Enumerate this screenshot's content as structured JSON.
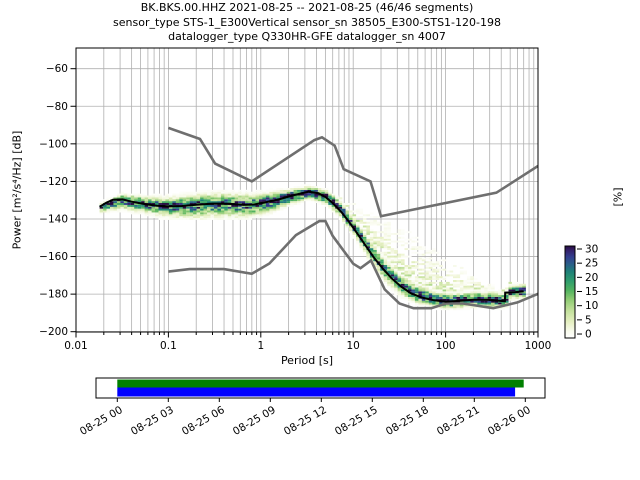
{
  "header": {
    "line1": "BK.BKS.00.HHZ   2021-08-25 -- 2021-08-25  (46/46 segments)",
    "line2": "sensor_type STS-1_E300Vertical sensor_sn 38505_E300-STS1-120-198",
    "line3": "datalogger_type Q330HR-GFE datalogger_sn 4007"
  },
  "chart_data": {
    "type": "heatmap",
    "title": "BK.BKS.00.HHZ   2021-08-25 -- 2021-08-25  (46/46 segments)",
    "x_axis": {
      "scale": "log",
      "min": 0.01,
      "max": 1000,
      "label": "Period [s]",
      "tick_labels": [
        "0.01",
        "0.1",
        "1",
        "10",
        "100",
        "1000"
      ],
      "tick_values": [
        0.01,
        0.1,
        1,
        10,
        100,
        1000
      ]
    },
    "y_axis": {
      "min": -200,
      "max": -49,
      "label": "Power [m²/s⁴/Hz] [dB]",
      "tick_values": [
        -60,
        -80,
        -100,
        -120,
        -140,
        -160,
        -180,
        -200
      ]
    },
    "colorbar": {
      "label": "[%]",
      "tick_values": [
        30,
        25,
        20,
        15,
        10,
        5,
        0
      ],
      "stops": [
        [
          0.0,
          "#ffffff"
        ],
        [
          0.07,
          "#f9fbee"
        ],
        [
          0.17,
          "#e7f0c3"
        ],
        [
          0.3,
          "#c2e09b"
        ],
        [
          0.42,
          "#8ecb73"
        ],
        [
          0.52,
          "#51b25f"
        ],
        [
          0.62,
          "#2f9d6d"
        ],
        [
          0.72,
          "#1f8178"
        ],
        [
          0.8,
          "#2a5f88"
        ],
        [
          0.88,
          "#333f8f"
        ],
        [
          0.95,
          "#34216b"
        ],
        [
          1.0,
          "#270b3f"
        ]
      ]
    },
    "grid_color": "#b0b0b0",
    "mode_line": {
      "color": "#000000",
      "points": [
        [
          0.018,
          -133.5
        ],
        [
          0.021,
          -131.5
        ],
        [
          0.025,
          -129.8
        ],
        [
          0.032,
          -129.6
        ],
        [
          0.04,
          -130.8
        ],
        [
          0.055,
          -132.0
        ],
        [
          0.075,
          -133.0
        ],
        [
          0.1,
          -133.3
        ],
        [
          0.14,
          -133.1
        ],
        [
          0.2,
          -132.4
        ],
        [
          0.3,
          -131.8
        ],
        [
          0.45,
          -131.9
        ],
        [
          0.65,
          -132.5
        ],
        [
          0.85,
          -132.3
        ],
        [
          1.1,
          -131.2
        ],
        [
          1.6,
          -129.4
        ],
        [
          2.2,
          -127.5
        ],
        [
          3.3,
          -125.5
        ],
        [
          4.2,
          -126.3
        ],
        [
          5.0,
          -128.3
        ],
        [
          6.0,
          -131.5
        ],
        [
          7.5,
          -136.5
        ],
        [
          9.0,
          -141.5
        ],
        [
          11.0,
          -147.5
        ],
        [
          14.0,
          -155.0
        ],
        [
          17.0,
          -161.0
        ],
        [
          21.0,
          -166.5
        ],
        [
          26.0,
          -171.5
        ],
        [
          33.0,
          -176.0
        ],
        [
          42.0,
          -179.5
        ],
        [
          55.0,
          -181.8
        ],
        [
          75.0,
          -183.3
        ],
        [
          100.0,
          -184.0
        ],
        [
          140.0,
          -183.6
        ],
        [
          200.0,
          -183.0
        ],
        [
          280.0,
          -183.0
        ],
        [
          380.0,
          -183.5
        ],
        [
          438.0,
          -183.8
        ],
        [
          442.0,
          -179.2
        ],
        [
          560.0,
          -179.0
        ],
        [
          700.0,
          -178.5
        ]
      ]
    },
    "noise_models": {
      "color": "#6f6f6f",
      "nhnm": [
        [
          0.1,
          -91.5
        ],
        [
          0.22,
          -97.4
        ],
        [
          0.32,
          -110.5
        ],
        [
          0.8,
          -120.0
        ],
        [
          3.8,
          -98.0
        ],
        [
          4.6,
          -96.5
        ],
        [
          6.3,
          -101.0
        ],
        [
          7.9,
          -113.5
        ],
        [
          15.4,
          -120.0
        ],
        [
          20.0,
          -138.5
        ],
        [
          354.8,
          -126.0
        ],
        [
          1000.0,
          -111.8
        ]
      ],
      "nlnm": [
        [
          0.1,
          -168.0
        ],
        [
          0.17,
          -166.7
        ],
        [
          0.4,
          -166.7
        ],
        [
          0.8,
          -169.2
        ],
        [
          1.24,
          -163.7
        ],
        [
          2.4,
          -148.6
        ],
        [
          4.3,
          -141.1
        ],
        [
          5.0,
          -141.1
        ],
        [
          6.0,
          -149.0
        ],
        [
          10.0,
          -163.8
        ],
        [
          12.0,
          -166.2
        ],
        [
          15.6,
          -162.1
        ],
        [
          21.9,
          -177.5
        ],
        [
          31.6,
          -185.0
        ],
        [
          45.0,
          -187.5
        ],
        [
          70.0,
          -187.5
        ],
        [
          101.0,
          -185.0
        ],
        [
          154.0,
          -185.0
        ],
        [
          328.0,
          -187.5
        ],
        [
          600.0,
          -184.4
        ],
        [
          1000.0,
          -179.8
        ]
      ]
    },
    "histogram_band": [
      {
        "p": 0.018,
        "c": -133.5,
        "lo": 2.0,
        "hi": 1.5,
        "fl": 1.0,
        "fh": 1.0,
        "pm": 24
      },
      {
        "p": 0.03,
        "c": -129.6,
        "lo": 3.5,
        "hi": 2.0,
        "fl": 2.0,
        "fh": 1.5,
        "pm": 26
      },
      {
        "p": 0.06,
        "c": -132.2,
        "lo": 3.5,
        "hi": 2.8,
        "fl": 2.0,
        "fh": 2.0,
        "pm": 25
      },
      {
        "p": 0.1,
        "c": -133.3,
        "lo": 4.0,
        "hi": 3.5,
        "fl": 2.5,
        "fh": 2.5,
        "pm": 23
      },
      {
        "p": 0.2,
        "c": -132.4,
        "lo": 5.0,
        "hi": 4.0,
        "fl": 3.0,
        "fh": 3.0,
        "pm": 22
      },
      {
        "p": 0.4,
        "c": -131.9,
        "lo": 5.0,
        "hi": 4.2,
        "fl": 3.0,
        "fh": 3.0,
        "pm": 22
      },
      {
        "p": 0.7,
        "c": -132.5,
        "lo": 4.5,
        "hi": 4.0,
        "fl": 3.0,
        "fh": 3.0,
        "pm": 23
      },
      {
        "p": 1.2,
        "c": -130.9,
        "lo": 4.0,
        "hi": 3.5,
        "fl": 2.5,
        "fh": 2.5,
        "pm": 25
      },
      {
        "p": 2.0,
        "c": -127.9,
        "lo": 3.0,
        "hi": 2.5,
        "fl": 2.0,
        "fh": 2.0,
        "pm": 27
      },
      {
        "p": 3.3,
        "c": -125.5,
        "lo": 2.5,
        "hi": 2.0,
        "fl": 1.5,
        "fh": 1.5,
        "pm": 30
      },
      {
        "p": 5.0,
        "c": -128.3,
        "lo": 2.8,
        "hi": 2.3,
        "fl": 1.5,
        "fh": 2.5,
        "pm": 28
      },
      {
        "p": 7.0,
        "c": -134.5,
        "lo": 3.0,
        "hi": 2.8,
        "fl": 2.0,
        "fh": 5.0,
        "pm": 26
      },
      {
        "p": 10.0,
        "c": -144.5,
        "lo": 3.5,
        "hi": 3.0,
        "fl": 2.5,
        "fh": 12.0,
        "pm": 22
      },
      {
        "p": 14.0,
        "c": -155.0,
        "lo": 4.0,
        "hi": 3.5,
        "fl": 3.0,
        "fh": 19.0,
        "pm": 20
      },
      {
        "p": 20.0,
        "c": -165.5,
        "lo": 4.5,
        "hi": 4.0,
        "fl": 6.0,
        "fh": 25.0,
        "pm": 19
      },
      {
        "p": 30.0,
        "c": -174.5,
        "lo": 4.0,
        "hi": 4.0,
        "fl": 7.0,
        "fh": 30.0,
        "pm": 20
      },
      {
        "p": 45.0,
        "c": -180.2,
        "lo": 3.0,
        "hi": 4.0,
        "fl": 5.0,
        "fh": 32.0,
        "pm": 23
      },
      {
        "p": 70.0,
        "c": -183.0,
        "lo": 2.5,
        "hi": 3.5,
        "fl": 3.5,
        "fh": 27.0,
        "pm": 26
      },
      {
        "p": 100.0,
        "c": -184.0,
        "lo": 2.5,
        "hi": 3.0,
        "fl": 2.5,
        "fh": 22.0,
        "pm": 28
      },
      {
        "p": 150.0,
        "c": -183.5,
        "lo": 2.5,
        "hi": 3.0,
        "fl": 2.5,
        "fh": 17.0,
        "pm": 28
      },
      {
        "p": 220.0,
        "c": -183.0,
        "lo": 2.5,
        "hi": 3.0,
        "fl": 2.5,
        "fh": 11.0,
        "pm": 28
      },
      {
        "p": 300.0,
        "c": -183.2,
        "lo": 2.5,
        "hi": 3.0,
        "fl": 2.5,
        "fh": 8.0,
        "pm": 27
      },
      {
        "p": 438.0,
        "c": -183.8,
        "lo": 2.5,
        "hi": 3.0,
        "fl": 2.0,
        "fh": 6.0,
        "pm": 27
      },
      {
        "p": 445.0,
        "c": -179.2,
        "lo": 2.5,
        "hi": 2.5,
        "fl": 2.0,
        "fh": 5.0,
        "pm": 27
      },
      {
        "p": 700.0,
        "c": -178.5,
        "lo": 2.5,
        "hi": 2.5,
        "fl": 2.0,
        "fh": 4.0,
        "pm": 27
      }
    ],
    "period_range": [
      0.018,
      700
    ],
    "db_bin_width": 1
  },
  "timeline": {
    "tick_labels": [
      "08-25 00",
      "08-25 03",
      "08-25 06",
      "08-25 09",
      "08-25 12",
      "08-25 15",
      "08-25 18",
      "08-25 21",
      "08-26 00"
    ],
    "bars": [
      {
        "name": "data-coverage",
        "color": "#008000",
        "start_frac": 0.0,
        "end_frac": 0.996
      },
      {
        "name": "processed-coverage",
        "color": "#0000ff",
        "start_frac": 0.0,
        "end_frac": 0.975
      }
    ]
  }
}
